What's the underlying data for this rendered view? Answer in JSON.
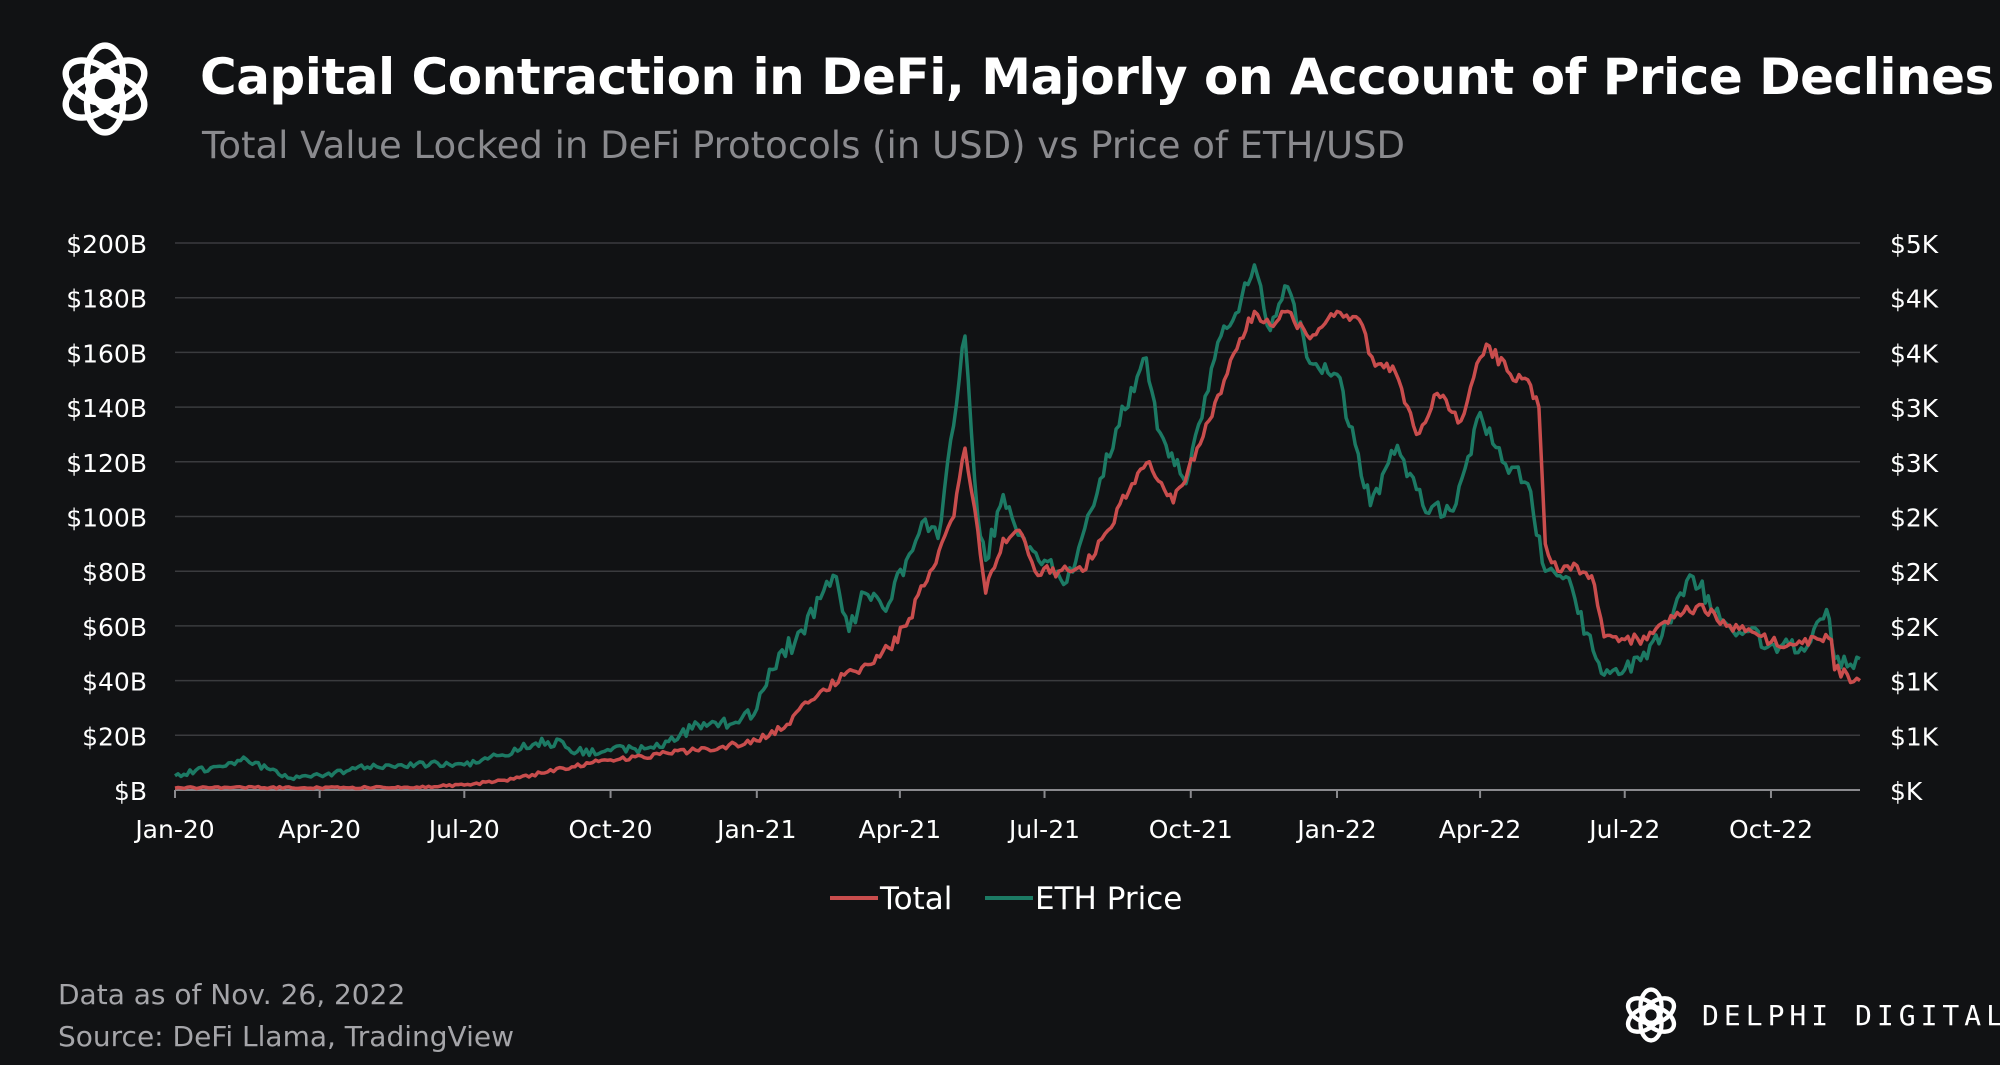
{
  "header": {
    "title": "Capital Contraction in DeFi, Majorly on Account of Price Declines",
    "subtitle": "Total Value Locked in DeFi Protocols (in USD) vs Price of ETH/USD"
  },
  "footer": {
    "date_note": "Data as of Nov. 26, 2022",
    "source_note": "Source: DeFi Llama, TradingView",
    "brand_name": "DELPHI DIGITAL"
  },
  "colors": {
    "background": "#111214",
    "total": "#c94d4d",
    "eth": "#1c7a64",
    "grid": "#3a3b3e",
    "text": "#ffffff"
  },
  "icons": {
    "top_logo": "delphi-knot-logo",
    "brand_logo": "delphi-knot-logo"
  },
  "chart_data": {
    "type": "line",
    "x_tick_labels": [
      "Jan-20",
      "Apr-20",
      "Jul-20",
      "Oct-20",
      "Jan-21",
      "Apr-21",
      "Jul-21",
      "Oct-21",
      "Jan-22",
      "Apr-22",
      "Jul-22",
      "Oct-22"
    ],
    "xlim": [
      "2020-01-01",
      "2022-11-26"
    ],
    "y_left": {
      "tick_labels": [
        "$B",
        "$20B",
        "$40B",
        "$60B",
        "$80B",
        "$100B",
        "$120B",
        "$140B",
        "$160B",
        "$180B",
        "$200B"
      ],
      "ylim": [
        0,
        200
      ]
    },
    "y_right": {
      "tick_labels": [
        "$K",
        "$1K",
        "$1K",
        "$2K",
        "$2K",
        "$2K",
        "$3K",
        "$3K",
        "$4K",
        "$4K",
        "$5K"
      ],
      "ylim": [
        0,
        5000
      ]
    },
    "grid": "horizontal",
    "legend_position": "bottom-center",
    "series": [
      {
        "name": "Total",
        "axis": "left",
        "color": "#c94d4d",
        "points": [
          [
            "2020-01-01",
            0.7
          ],
          [
            "2020-02-01",
            1.0
          ],
          [
            "2020-03-01",
            0.9
          ],
          [
            "2020-04-01",
            0.8
          ],
          [
            "2020-05-01",
            0.9
          ],
          [
            "2020-06-01",
            1.1
          ],
          [
            "2020-07-01",
            1.8
          ],
          [
            "2020-08-01",
            4.0
          ],
          [
            "2020-09-01",
            8.0
          ],
          [
            "2020-10-01",
            11.0
          ],
          [
            "2020-11-01",
            13.0
          ],
          [
            "2020-12-01",
            15.0
          ],
          [
            "2021-01-01",
            18.0
          ],
          [
            "2021-01-20",
            24.0
          ],
          [
            "2021-02-10",
            36.0
          ],
          [
            "2021-02-25",
            42.0
          ],
          [
            "2021-03-10",
            46.0
          ],
          [
            "2021-03-25",
            52.0
          ],
          [
            "2021-04-05",
            60.0
          ],
          [
            "2021-04-20",
            80.0
          ],
          [
            "2021-05-05",
            100.0
          ],
          [
            "2021-05-12",
            125.0
          ],
          [
            "2021-05-20",
            95.0
          ],
          [
            "2021-05-25",
            72.0
          ],
          [
            "2021-06-05",
            92.0
          ],
          [
            "2021-06-15",
            95.0
          ],
          [
            "2021-06-25",
            80.0
          ],
          [
            "2021-07-10",
            80.0
          ],
          [
            "2021-07-25",
            80.0
          ],
          [
            "2021-08-10",
            95.0
          ],
          [
            "2021-08-25",
            112.0
          ],
          [
            "2021-09-05",
            120.0
          ],
          [
            "2021-09-20",
            105.0
          ],
          [
            "2021-10-05",
            125.0
          ],
          [
            "2021-10-20",
            145.0
          ],
          [
            "2021-11-01",
            165.0
          ],
          [
            "2021-11-10",
            175.0
          ],
          [
            "2021-11-20",
            170.0
          ],
          [
            "2021-12-01",
            175.0
          ],
          [
            "2021-12-15",
            165.0
          ],
          [
            "2022-01-01",
            175.0
          ],
          [
            "2022-01-15",
            172.0
          ],
          [
            "2022-01-25",
            155.0
          ],
          [
            "2022-02-05",
            155.0
          ],
          [
            "2022-02-20",
            130.0
          ],
          [
            "2022-03-05",
            145.0
          ],
          [
            "2022-03-20",
            135.0
          ],
          [
            "2022-04-01",
            158.0
          ],
          [
            "2022-04-05",
            163.0
          ],
          [
            "2022-04-20",
            152.0
          ],
          [
            "2022-05-01",
            150.0
          ],
          [
            "2022-05-08",
            140.0
          ],
          [
            "2022-05-12",
            90.0
          ],
          [
            "2022-05-20",
            80.0
          ],
          [
            "2022-06-01",
            82.0
          ],
          [
            "2022-06-12",
            75.0
          ],
          [
            "2022-06-18",
            56.0
          ],
          [
            "2022-07-01",
            55.0
          ],
          [
            "2022-07-15",
            55.0
          ],
          [
            "2022-08-01",
            63.0
          ],
          [
            "2022-08-15",
            67.0
          ],
          [
            "2022-09-01",
            62.0
          ],
          [
            "2022-09-15",
            58.0
          ],
          [
            "2022-10-01",
            54.0
          ],
          [
            "2022-10-15",
            53.0
          ],
          [
            "2022-11-01",
            55.0
          ],
          [
            "2022-11-08",
            55.0
          ],
          [
            "2022-11-10",
            44.0
          ],
          [
            "2022-11-26",
            40.0
          ]
        ]
      },
      {
        "name": "ETH Price",
        "axis": "right",
        "color": "#1c7a64",
        "points": [
          [
            "2020-01-01",
            130
          ],
          [
            "2020-02-15",
            280
          ],
          [
            "2020-03-12",
            110
          ],
          [
            "2020-04-01",
            135
          ],
          [
            "2020-05-01",
            210
          ],
          [
            "2020-06-01",
            240
          ],
          [
            "2020-07-01",
            230
          ],
          [
            "2020-07-25",
            320
          ],
          [
            "2020-08-15",
            430
          ],
          [
            "2020-09-01",
            440
          ],
          [
            "2020-09-10",
            350
          ],
          [
            "2020-10-01",
            360
          ],
          [
            "2020-11-01",
            390
          ],
          [
            "2020-11-25",
            600
          ],
          [
            "2020-12-15",
            600
          ],
          [
            "2021-01-01",
            740
          ],
          [
            "2021-01-15",
            1250
          ],
          [
            "2021-01-25",
            1350
          ],
          [
            "2021-02-10",
            1750
          ],
          [
            "2021-02-20",
            1950
          ],
          [
            "2021-02-28",
            1450
          ],
          [
            "2021-03-10",
            1800
          ],
          [
            "2021-03-25",
            1700
          ],
          [
            "2021-04-05",
            2100
          ],
          [
            "2021-04-15",
            2450
          ],
          [
            "2021-04-25",
            2300
          ],
          [
            "2021-05-03",
            3200
          ],
          [
            "2021-05-12",
            4150
          ],
          [
            "2021-05-20",
            2500
          ],
          [
            "2021-05-25",
            2100
          ],
          [
            "2021-06-05",
            2700
          ],
          [
            "2021-06-20",
            2200
          ],
          [
            "2021-07-01",
            2100
          ],
          [
            "2021-07-15",
            1900
          ],
          [
            "2021-08-01",
            2600
          ],
          [
            "2021-08-15",
            3300
          ],
          [
            "2021-09-03",
            3950
          ],
          [
            "2021-09-10",
            3300
          ],
          [
            "2021-09-28",
            2800
          ],
          [
            "2021-10-10",
            3600
          ],
          [
            "2021-10-20",
            4150
          ],
          [
            "2021-11-02",
            4500
          ],
          [
            "2021-11-10",
            4800
          ],
          [
            "2021-11-20",
            4200
          ],
          [
            "2021-12-01",
            4600
          ],
          [
            "2021-12-15",
            3900
          ],
          [
            "2022-01-01",
            3800
          ],
          [
            "2022-01-22",
            2600
          ],
          [
            "2022-02-08",
            3150
          ],
          [
            "2022-02-24",
            2600
          ],
          [
            "2022-03-15",
            2550
          ],
          [
            "2022-04-01",
            3450
          ],
          [
            "2022-04-15",
            3000
          ],
          [
            "2022-05-01",
            2800
          ],
          [
            "2022-05-12",
            2000
          ],
          [
            "2022-05-25",
            1950
          ],
          [
            "2022-06-13",
            1200
          ],
          [
            "2022-06-18",
            1050
          ],
          [
            "2022-07-01",
            1100
          ],
          [
            "2022-07-15",
            1200
          ],
          [
            "2022-08-01",
            1650
          ],
          [
            "2022-08-13",
            1950
          ],
          [
            "2022-09-01",
            1550
          ],
          [
            "2022-09-15",
            1450
          ],
          [
            "2022-10-01",
            1330
          ],
          [
            "2022-10-20",
            1300
          ],
          [
            "2022-11-05",
            1650
          ],
          [
            "2022-11-10",
            1200
          ],
          [
            "2022-11-20",
            1150
          ],
          [
            "2022-11-26",
            1200
          ]
        ]
      }
    ]
  }
}
